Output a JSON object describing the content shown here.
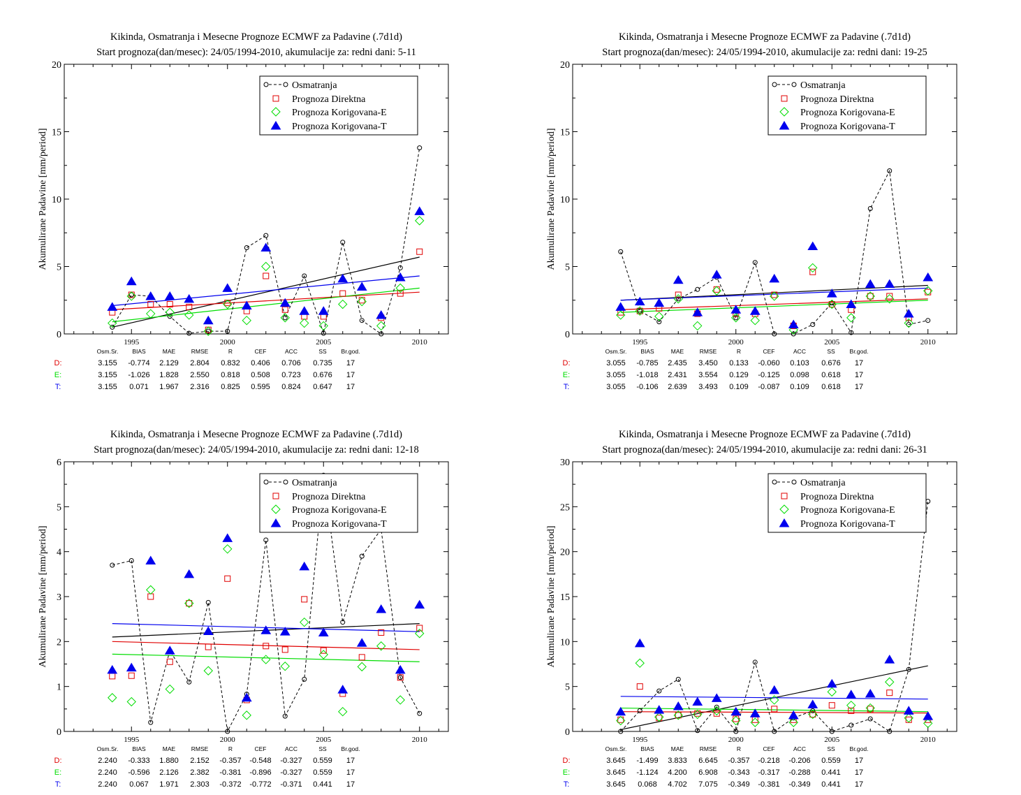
{
  "chart_data": [
    {
      "type": "scatter",
      "title": "Kikinda, Osmatranja i Mesecne Prognoze ECMWF za Padavine (.7d1d)",
      "subtitle": "Start prognoza(dan/mesec): 24/05/1994-2010, akumulacije za: redni dani: 5-11",
      "ylabel": "Akumulirane Padavine [mm/period]",
      "xlim": [
        1991.5,
        2011.5
      ],
      "ylim": [
        0,
        20
      ],
      "xticks": [
        1995,
        2000,
        2005,
        2010
      ],
      "yticks": [
        0,
        5,
        10,
        15,
        20
      ],
      "x": [
        1994,
        1995,
        1996,
        1997,
        1998,
        1999,
        2000,
        2001,
        2002,
        2003,
        2004,
        2005,
        2006,
        2007,
        2008,
        2009,
        2010
      ],
      "legend": [
        "Osmatranja",
        "Prognoza Direktna",
        "Prognoza Korigovana-E",
        "Prognoza Korigovana-T"
      ],
      "colors": {
        "obs": "#000000",
        "d": "#e00000",
        "e": "#00dd00",
        "t": "#0000ee"
      },
      "series": [
        {
          "name": "Osmatranja",
          "values": [
            0.5,
            2.9,
            2.8,
            1.3,
            0.05,
            0.2,
            0.2,
            6.4,
            7.3,
            1.2,
            4.3,
            0.05,
            6.8,
            1.0,
            0.0,
            4.9,
            13.8
          ]
        },
        {
          "name": "Prognoza Direktna",
          "values": [
            1.6,
            2.9,
            2.2,
            2.2,
            2.0,
            0.3,
            2.3,
            1.7,
            4.3,
            1.8,
            1.3,
            1.3,
            3.0,
            2.5,
            1.2,
            3.0,
            6.1
          ]
        },
        {
          "name": "Prognoza Korigovana-E",
          "values": [
            0.8,
            2.8,
            1.5,
            1.6,
            1.4,
            0.2,
            2.2,
            1.0,
            5.0,
            1.2,
            0.8,
            0.6,
            2.2,
            2.4,
            0.6,
            3.4,
            8.4
          ]
        },
        {
          "name": "Prognoza Korigovana-T",
          "values": [
            2.0,
            3.9,
            2.8,
            2.8,
            2.6,
            1.0,
            3.4,
            2.1,
            6.4,
            2.3,
            1.7,
            1.7,
            4.1,
            3.5,
            1.4,
            4.2,
            9.1
          ]
        }
      ],
      "trend": {
        "obs": [
          0.5,
          5.7
        ],
        "d": [
          1.8,
          3.1
        ],
        "e": [
          0.9,
          3.4
        ],
        "t": [
          2.1,
          4.3
        ]
      },
      "stats": {
        "header": [
          "Osm.Sr.",
          "BIAS",
          "MAE",
          "RMSE",
          "R",
          "CEF",
          "ACC",
          "SS",
          "Br.god."
        ],
        "rows": [
          {
            "label": "D:",
            "values": [
              "3.155",
              "-0.774",
              "2.129",
              "2.804",
              "0.832",
              "0.406",
              "0.706",
              "0.735",
              "17"
            ]
          },
          {
            "label": "E:",
            "values": [
              "3.155",
              "-1.026",
              "1.828",
              "2.550",
              "0.818",
              "0.508",
              "0.723",
              "0.676",
              "17"
            ]
          },
          {
            "label": "T:",
            "values": [
              "3.155",
              "0.071",
              "1.967",
              "2.316",
              "0.825",
              "0.595",
              "0.824",
              "0.647",
              "17"
            ]
          }
        ]
      }
    },
    {
      "type": "scatter",
      "title": "Kikinda, Osmatranja i Mesecne Prognoze ECMWF za Padavine (.7d1d)",
      "subtitle": "Start prognoza(dan/mesec): 24/05/1994-2010, akumulacije za: redni dani: 19-25",
      "ylabel": "Akumulirane Padavine [mm/period]",
      "xlim": [
        1991.5,
        2011.5
      ],
      "ylim": [
        0,
        20
      ],
      "xticks": [
        1995,
        2000,
        2005,
        2010
      ],
      "yticks": [
        0,
        5,
        10,
        15,
        20
      ],
      "x": [
        1994,
        1995,
        1996,
        1997,
        1998,
        1999,
        2000,
        2001,
        2002,
        2003,
        2004,
        2005,
        2006,
        2007,
        2008,
        2009,
        2010
      ],
      "legend": [
        "Osmatranja",
        "Prognoza Direktna",
        "Prognoza Korigovana-E",
        "Prognoza Korigovana-T"
      ],
      "colors": {
        "obs": "#000000",
        "d": "#e00000",
        "e": "#00dd00",
        "t": "#0000ee"
      },
      "series": [
        {
          "name": "Osmatranja",
          "values": [
            6.1,
            1.7,
            0.9,
            2.6,
            3.3,
            4.2,
            1.2,
            5.3,
            0.0,
            0.0,
            0.7,
            2.3,
            0.1,
            9.3,
            12.1,
            0.7,
            1.0
          ]
        },
        {
          "name": "Prognoza Direktna",
          "values": [
            1.6,
            1.7,
            1.9,
            2.9,
            1.5,
            3.3,
            1.5,
            1.5,
            2.9,
            0.6,
            4.6,
            2.2,
            1.8,
            2.8,
            2.8,
            1.2,
            3.1
          ]
        },
        {
          "name": "Prognoza Korigovana-E",
          "values": [
            1.4,
            1.7,
            1.3,
            2.6,
            0.6,
            3.2,
            1.2,
            1.0,
            2.8,
            0.3,
            4.9,
            2.2,
            1.2,
            2.8,
            2.6,
            0.8,
            3.2
          ]
        },
        {
          "name": "Prognoza Korigovana-T",
          "values": [
            2.0,
            2.4,
            2.3,
            4.0,
            1.6,
            4.4,
            1.8,
            1.7,
            4.1,
            0.7,
            6.5,
            3.0,
            2.2,
            3.7,
            3.7,
            1.5,
            4.2
          ]
        }
      ],
      "trend": {
        "obs": [
          2.5,
          3.6
        ],
        "d": [
          1.8,
          2.6
        ],
        "e": [
          1.6,
          2.5
        ],
        "t": [
          2.5,
          3.4
        ]
      },
      "stats": {
        "header": [
          "Osm.Sr.",
          "BIAS",
          "MAE",
          "RMSE",
          "R",
          "CEF",
          "ACC",
          "SS",
          "Br.god."
        ],
        "rows": [
          {
            "label": "D:",
            "values": [
              "3.055",
              "-0.785",
              "2.435",
              "3.450",
              "0.133",
              "-0.060",
              "0.103",
              "0.676",
              "17"
            ]
          },
          {
            "label": "E:",
            "values": [
              "3.055",
              "-1.018",
              "2.431",
              "3.554",
              "0.129",
              "-0.125",
              "0.098",
              "0.618",
              "17"
            ]
          },
          {
            "label": "T:",
            "values": [
              "3.055",
              "-0.106",
              "2.639",
              "3.493",
              "0.109",
              "-0.087",
              "0.109",
              "0.618",
              "17"
            ]
          }
        ]
      }
    },
    {
      "type": "scatter",
      "title": "Kikinda, Osmatranja i Mesecne Prognoze ECMWF za Padavine (.7d1d)",
      "subtitle": "Start prognoza(dan/mesec): 24/05/1994-2010, akumulacije za: redni dani: 12-18",
      "ylabel": "Akumulirane Padavine [mm/period]",
      "xlim": [
        1991.5,
        2011.5
      ],
      "ylim": [
        0,
        6
      ],
      "xticks": [
        1995,
        2000,
        2005,
        2010
      ],
      "yticks": [
        0,
        1,
        2,
        3,
        4,
        5,
        6
      ],
      "x": [
        1994,
        1995,
        1996,
        1997,
        1998,
        1999,
        2000,
        2001,
        2002,
        2003,
        2004,
        2005,
        2006,
        2007,
        2008,
        2009,
        2010
      ],
      "legend": [
        "Osmatranja",
        "Prognoza Direktna",
        "Prognoza Korigovana-E",
        "Prognoza Korigovana-T"
      ],
      "colors": {
        "obs": "#000000",
        "d": "#e00000",
        "e": "#00dd00",
        "t": "#0000ee"
      },
      "series": [
        {
          "name": "Osmatranja",
          "values": [
            3.7,
            3.8,
            0.2,
            1.8,
            1.1,
            2.87,
            0.0,
            0.83,
            4.26,
            0.34,
            1.16,
            5.7,
            2.43,
            3.9,
            4.5,
            1.2,
            0.4
          ]
        },
        {
          "name": "Prognoza Direktna",
          "values": [
            1.23,
            1.24,
            3.0,
            1.55,
            2.85,
            1.88,
            3.4,
            0.7,
            1.9,
            1.82,
            2.94,
            1.8,
            0.84,
            1.65,
            2.2,
            1.2,
            2.3
          ]
        },
        {
          "name": "Prognoza Korigovana-E",
          "values": [
            0.75,
            0.66,
            3.15,
            0.94,
            2.85,
            1.35,
            4.06,
            0.36,
            1.6,
            1.45,
            2.43,
            1.71,
            0.44,
            1.44,
            1.9,
            0.7,
            2.18
          ]
        },
        {
          "name": "Prognoza Korigovana-T",
          "values": [
            1.37,
            1.42,
            3.8,
            1.8,
            3.5,
            2.23,
            4.3,
            0.75,
            2.25,
            2.22,
            3.67,
            2.2,
            0.93,
            1.97,
            2.72,
            1.37,
            2.82
          ]
        }
      ],
      "trend": {
        "obs": [
          2.1,
          2.4
        ],
        "d": [
          2.0,
          1.82
        ],
        "e": [
          1.72,
          1.55
        ],
        "t": [
          2.4,
          2.22
        ]
      },
      "stats": {
        "header": [
          "Osm.Sr.",
          "BIAS",
          "MAE",
          "RMSE",
          "R",
          "CEF",
          "ACC",
          "SS",
          "Br.god."
        ],
        "rows": [
          {
            "label": "D:",
            "values": [
              "2.240",
              "-0.333",
              "1.880",
              "2.152",
              "-0.357",
              "-0.548",
              "-0.327",
              "0.559",
              "17"
            ]
          },
          {
            "label": "E:",
            "values": [
              "2.240",
              "-0.596",
              "2.126",
              "2.382",
              "-0.381",
              "-0.896",
              "-0.327",
              "0.559",
              "17"
            ]
          },
          {
            "label": "T:",
            "values": [
              "2.240",
              "0.067",
              "1.971",
              "2.303",
              "-0.372",
              "-0.772",
              "-0.371",
              "0.441",
              "17"
            ]
          }
        ]
      }
    },
    {
      "type": "scatter",
      "title": "Kikinda, Osmatranja i Mesecne Prognoze ECMWF za Padavine (.7d1d)",
      "subtitle": "Start prognoza(dan/mesec): 24/05/1994-2010, akumulacije za: redni dani: 26-31",
      "ylabel": "Akumulirane Padavine [mm/period]",
      "xlim": [
        1991.5,
        2011.5
      ],
      "ylim": [
        0,
        30
      ],
      "xticks": [
        1995,
        2000,
        2005,
        2010
      ],
      "yticks": [
        0,
        5,
        10,
        15,
        20,
        25,
        30
      ],
      "x": [
        1994,
        1995,
        1996,
        1997,
        1998,
        1999,
        2000,
        2001,
        2002,
        2003,
        2004,
        2005,
        2006,
        2007,
        2008,
        2009,
        2010
      ],
      "legend": [
        "Osmatranja",
        "Prognoza Direktna",
        "Prognoza Korigovana-E",
        "Prognoza Korigovana-T"
      ],
      "colors": {
        "obs": "#000000",
        "d": "#e00000",
        "e": "#00dd00",
        "t": "#0000ee"
      },
      "series": [
        {
          "name": "Osmatranja",
          "values": [
            0.0,
            2.3,
            4.5,
            5.8,
            0.1,
            2.7,
            0.0,
            7.7,
            0.0,
            1.5,
            2.3,
            0.0,
            0.7,
            1.4,
            0.0,
            6.9,
            25.6
          ]
        },
        {
          "name": "Prognoza Direktna",
          "values": [
            1.3,
            5.0,
            1.5,
            1.8,
            2.0,
            2.0,
            1.4,
            1.3,
            2.5,
            1.3,
            1.9,
            2.9,
            2.3,
            2.5,
            4.3,
            1.3,
            1.3
          ]
        },
        {
          "name": "Prognoza Korigovana-E",
          "values": [
            1.2,
            7.6,
            1.6,
            1.8,
            1.9,
            2.3,
            1.2,
            1.0,
            3.5,
            1.0,
            1.9,
            4.4,
            2.9,
            2.6,
            5.5,
            1.5,
            0.9
          ]
        },
        {
          "name": "Prognoza Korigovana-T",
          "values": [
            2.2,
            9.8,
            2.4,
            2.8,
            3.3,
            3.7,
            2.2,
            2.0,
            4.6,
            1.8,
            3.0,
            5.3,
            4.1,
            4.2,
            8.0,
            2.3,
            1.7
          ]
        }
      ],
      "trend": {
        "obs": [
          0.2,
          7.3
        ],
        "d": [
          2.2,
          2.05
        ],
        "e": [
          2.6,
          2.2
        ],
        "t": [
          3.9,
          3.6
        ]
      },
      "stats": {
        "header": [
          "Osm.Sr.",
          "BIAS",
          "MAE",
          "RMSE",
          "R",
          "CEF",
          "ACC",
          "SS",
          "Br.god."
        ],
        "rows": [
          {
            "label": "D:",
            "values": [
              "3.645",
              "-1.499",
              "3.833",
              "6.645",
              "-0.357",
              "-0.218",
              "-0.206",
              "0.559",
              "17"
            ]
          },
          {
            "label": "E:",
            "values": [
              "3.645",
              "-1.124",
              "4.200",
              "6.908",
              "-0.343",
              "-0.317",
              "-0.288",
              "0.441",
              "17"
            ]
          },
          {
            "label": "T:",
            "values": [
              "3.645",
              "0.068",
              "4.702",
              "7.075",
              "-0.349",
              "-0.381",
              "-0.349",
              "0.441",
              "17"
            ]
          }
        ]
      }
    }
  ]
}
